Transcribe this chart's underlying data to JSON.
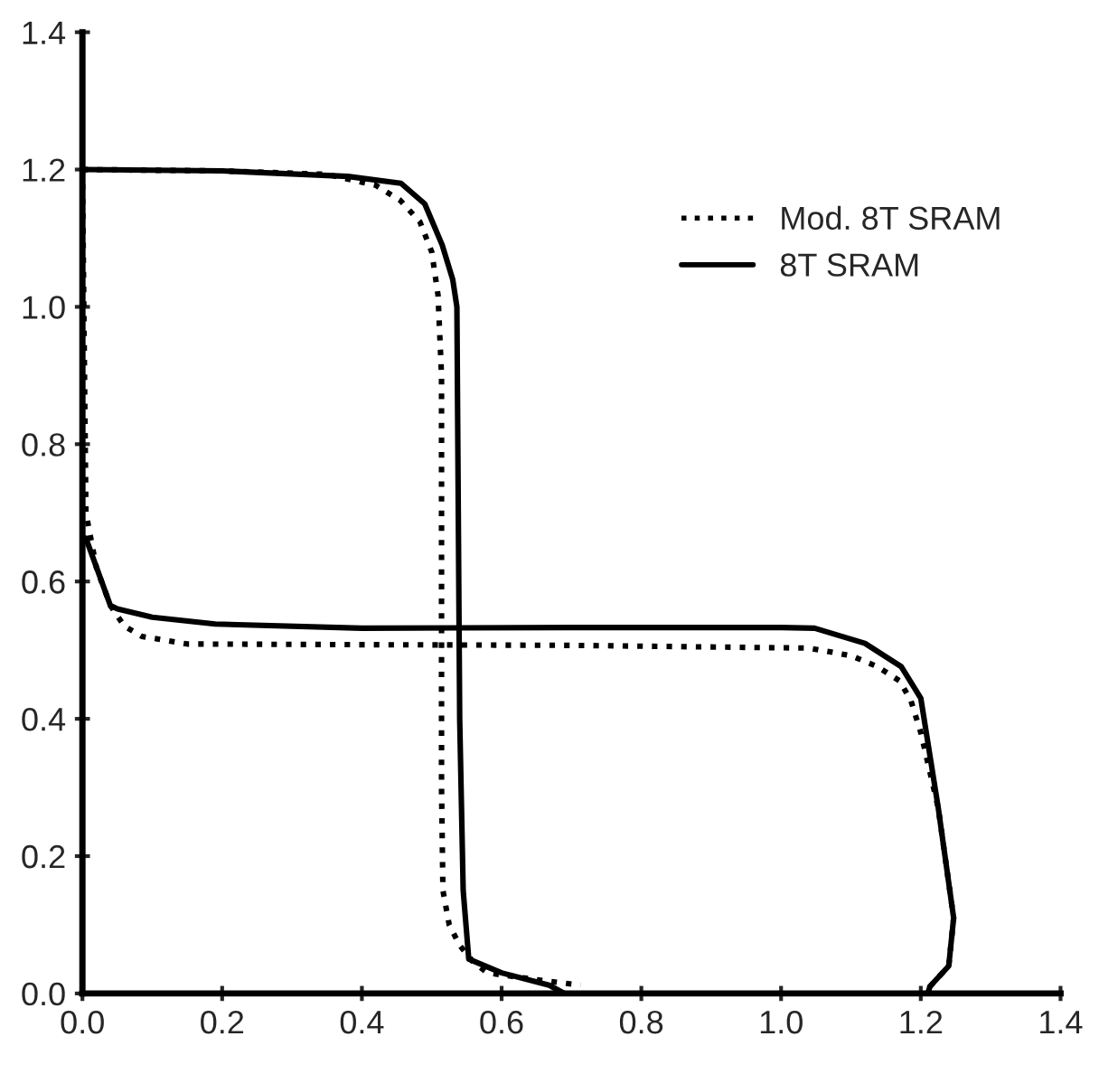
{
  "chart_data": {
    "type": "line",
    "xlim": [
      0,
      1.4
    ],
    "xticks": [
      {
        "value": 0,
        "label": "0.0"
      },
      0.2,
      0.4,
      0.6,
      0.8,
      {
        "value": 1,
        "label": "1.0"
      },
      1.2,
      1.4
    ],
    "ylim": [
      0,
      1.4
    ],
    "yticks": [
      {
        "value": 0,
        "label": "0.0"
      },
      0.2,
      0.4,
      0.6,
      0.8,
      {
        "value": 1,
        "label": "1.0"
      },
      1.2,
      1.4
    ],
    "grid": false,
    "legend": "top right",
    "series": [
      {
        "name": "Mod. 8T SRAM",
        "color": "#000000",
        "line_style": "dotted",
        "x": [
          0,
          0.2,
          0.35,
          0.42,
          0.455,
          0.483,
          0.5,
          0.509,
          0.514,
          0.514,
          0.514,
          0.516,
          0.525,
          0.54,
          0.56,
          0.58,
          0.65,
          0.713
        ],
        "values": [
          1.2,
          1.198,
          1.193,
          1.177,
          1.155,
          1.124,
          1.08,
          1.017,
          0.9,
          0.6,
          0.3,
          0.15,
          0.1,
          0.07,
          0.045,
          0.03,
          0.02,
          0.012
        ]
      },
      {
        "color": "#000000",
        "line_style": "dotted",
        "x": [
          0,
          0.003,
          0.005,
          0.02,
          0.04,
          0.06,
          0.085,
          0.15,
          0.4,
          0.7,
          1.04,
          1.1,
          1.138,
          1.17,
          1.186,
          1.2,
          1.225,
          1.247,
          1.24,
          1.213,
          1.21
        ],
        "values": [
          1.2,
          0.9,
          0.7,
          0.62,
          0.565,
          0.535,
          0.52,
          0.509,
          0.508,
          0.507,
          0.503,
          0.492,
          0.476,
          0.455,
          0.426,
          0.38,
          0.27,
          0.11,
          0.04,
          0.01,
          0
        ]
      },
      {
        "name": "8T SRAM",
        "color": "#000000",
        "line_style": "solid",
        "x": [
          0,
          0.2,
          0.38,
          0.456,
          0.49,
          0.515,
          0.53,
          0.536,
          0.538,
          0.54,
          0.545,
          0.553,
          0.6,
          0.668,
          0.69
        ],
        "values": [
          1.2,
          1.198,
          1.19,
          1.18,
          1.15,
          1.09,
          1.04,
          1.0,
          0.7,
          0.4,
          0.15,
          0.05,
          0.03,
          0.012,
          0
        ]
      },
      {
        "color": "#000000",
        "line_style": "solid",
        "x": [
          0.005,
          0.04,
          0.05,
          0.1,
          0.19,
          0.4,
          0.7,
          1.0,
          1.048,
          1.12,
          1.172,
          1.2,
          1.225,
          1.247,
          1.24,
          1.213,
          1.21
        ],
        "values": [
          0.663,
          0.565,
          0.56,
          0.548,
          0.538,
          0.532,
          0.533,
          0.533,
          0.532,
          0.51,
          0.476,
          0.43,
          0.27,
          0.11,
          0.04,
          0.01,
          0
        ]
      }
    ]
  }
}
